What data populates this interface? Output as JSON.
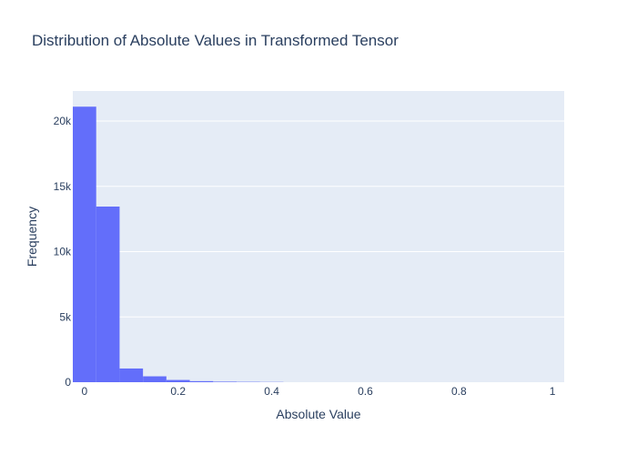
{
  "chart_data": {
    "type": "bar",
    "title": "Distribution of Absolute Values in Transformed Tensor",
    "xlabel": "Absolute Value",
    "ylabel": "Frequency",
    "bin_width": 0.05,
    "bins": [
      {
        "x0": -0.025,
        "x1": 0.025,
        "count": 21100
      },
      {
        "x0": 0.025,
        "x1": 0.075,
        "count": 13450
      },
      {
        "x0": 0.075,
        "x1": 0.125,
        "count": 1050
      },
      {
        "x0": 0.125,
        "x1": 0.175,
        "count": 450
      },
      {
        "x0": 0.175,
        "x1": 0.225,
        "count": 170
      },
      {
        "x0": 0.225,
        "x1": 0.275,
        "count": 80
      },
      {
        "x0": 0.275,
        "x1": 0.325,
        "count": 40
      },
      {
        "x0": 0.325,
        "x1": 0.375,
        "count": 25
      },
      {
        "x0": 0.375,
        "x1": 0.425,
        "count": 15
      }
    ],
    "xlim": [
      -0.025,
      1.025
    ],
    "ylim": [
      0,
      22300
    ],
    "x_ticks": [
      0,
      0.2,
      0.4,
      0.6,
      0.8,
      1
    ],
    "x_tick_labels": [
      "0",
      "0.2",
      "0.4",
      "0.6",
      "0.8",
      "1"
    ],
    "y_ticks": [
      0,
      5000,
      10000,
      15000,
      20000
    ],
    "y_tick_labels": [
      "0",
      "5k",
      "10k",
      "15k",
      "20k"
    ],
    "grid": "horizontal",
    "bar_color": "#636efa",
    "plot_background": "#e5ecf6"
  }
}
